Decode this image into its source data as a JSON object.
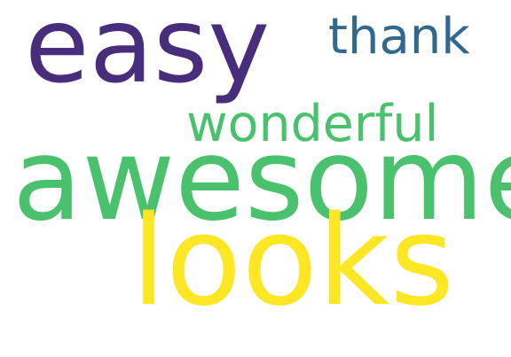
{
  "word_cloud": {
    "words": {
      "easy": {
        "text": "easy",
        "color": "#472d7b"
      },
      "thank": {
        "text": "thank",
        "color": "#31688e"
      },
      "wonderful": {
        "text": "wonderful",
        "color": "#4ac16d"
      },
      "awesome": {
        "text": "awesome",
        "color": "#4ac16d"
      },
      "looks": {
        "text": "looks",
        "color": "#fde725"
      }
    }
  }
}
